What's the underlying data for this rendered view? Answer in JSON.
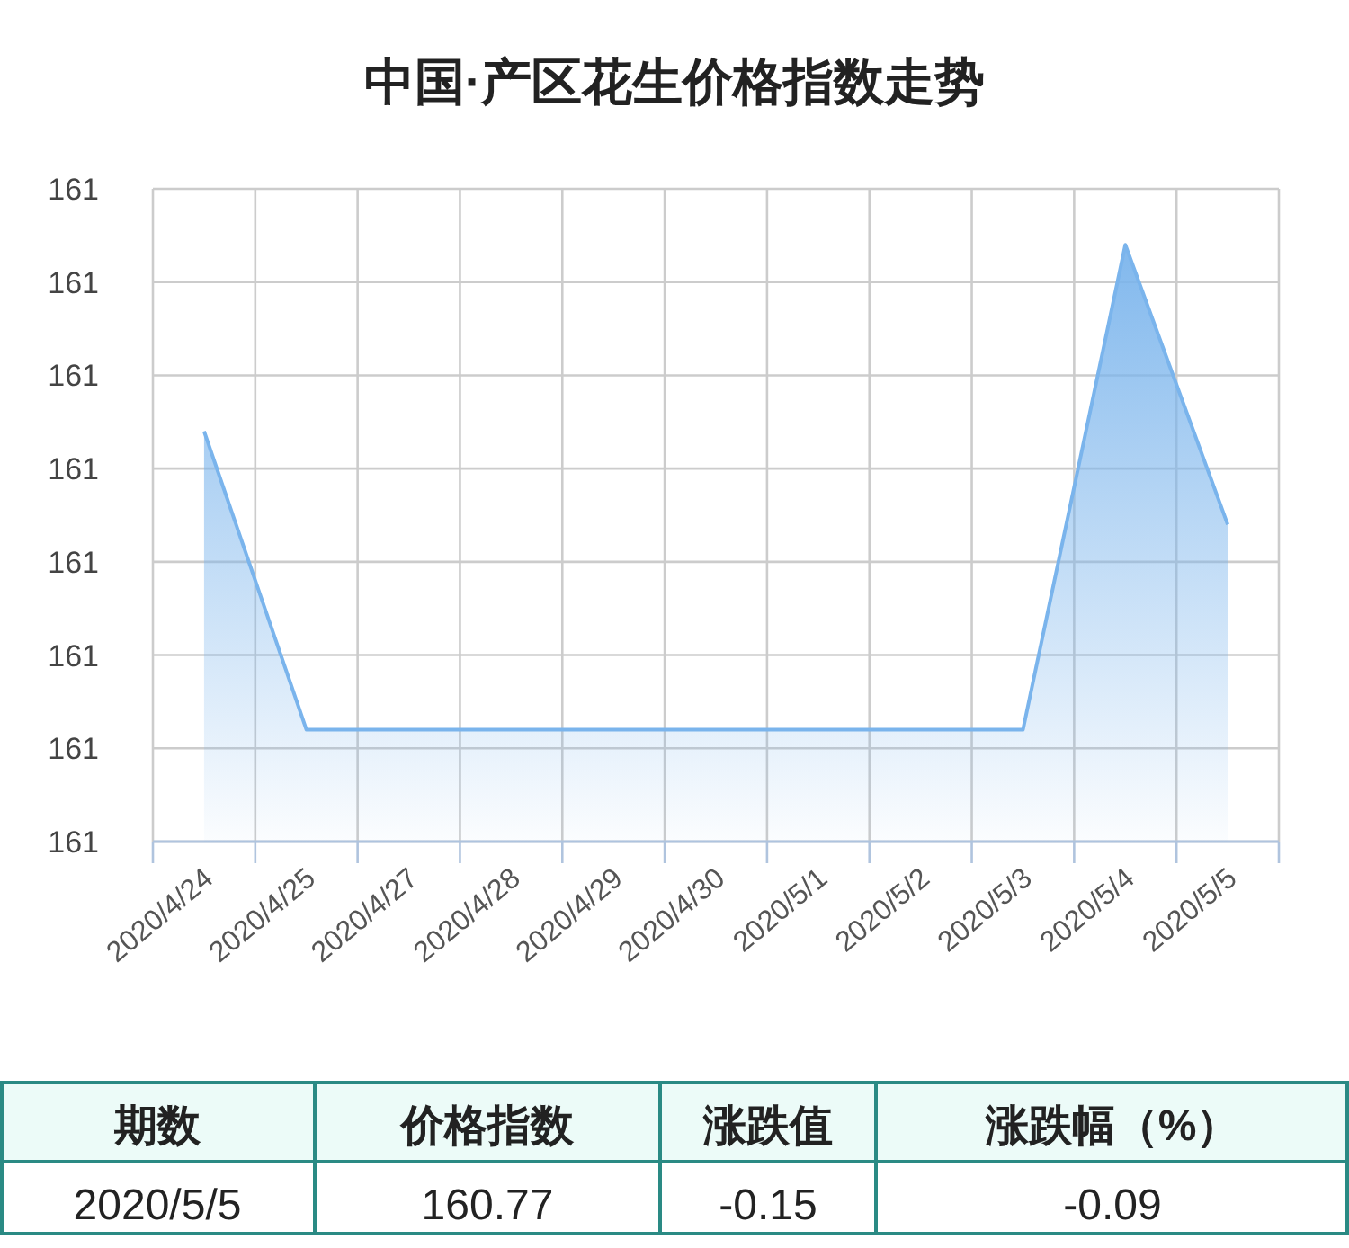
{
  "chart_data": {
    "type": "area",
    "title": "中国·产区花生价格指数走势",
    "categories": [
      "2020/4/24",
      "2020/4/25",
      "2020/4/27",
      "2020/4/28",
      "2020/4/29",
      "2020/4/30",
      "2020/5/1",
      "2020/5/2",
      "2020/5/3",
      "2020/5/4",
      "2020/5/5"
    ],
    "series": [
      {
        "color": "#7ab4ec",
        "values": [
          160.82,
          160.66,
          160.66,
          160.66,
          160.66,
          160.66,
          160.66,
          160.66,
          160.66,
          160.92,
          160.77
        ]
      }
    ],
    "ylim": [
      160.6,
      160.95
    ],
    "yticks": [
      {
        "value": 160.6,
        "label": "161"
      },
      {
        "value": 160.65,
        "label": "161"
      },
      {
        "value": 160.7,
        "label": "161"
      },
      {
        "value": 160.75,
        "label": "161"
      },
      {
        "value": 160.8,
        "label": "161"
      },
      {
        "value": 160.85,
        "label": "161"
      },
      {
        "value": 160.9,
        "label": "161"
      },
      {
        "value": 160.95,
        "label": "161"
      }
    ],
    "grid": true,
    "annotations": [
      "期数",
      "价格指数",
      "涨跌值",
      "涨跌幅（%）",
      "2020/5/5",
      "160.77",
      "-0.15",
      "-0.09"
    ]
  }
}
